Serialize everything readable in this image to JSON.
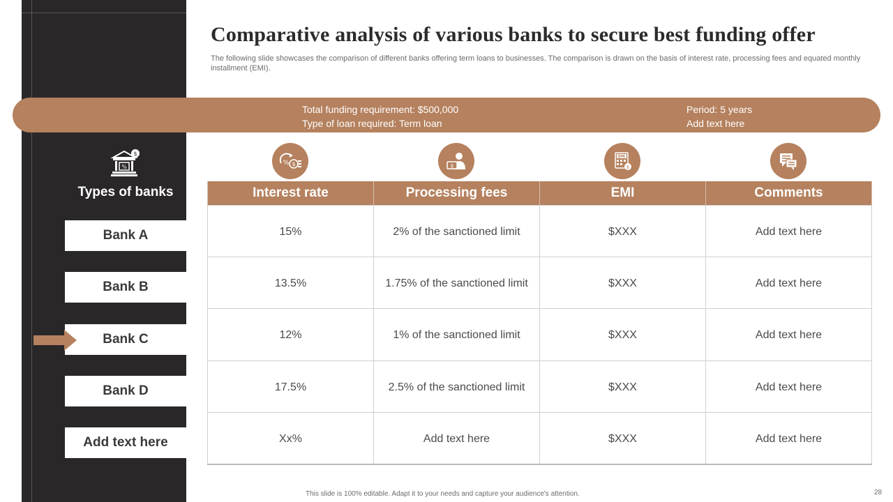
{
  "title": "Comparative analysis of various banks to secure best funding offer",
  "subtitle": "The following slide showcases the comparison of different banks offering term loans to businesses. The comparison is drawn on the basis of interest rate, processing fees and equated monthly installment (EMI).",
  "banner": {
    "left_line1": "Total funding requirement: $500,000",
    "left_line2": "Type of loan required: Term loan",
    "right_line1": "Period: 5 years",
    "right_line2": "Add text here"
  },
  "sidebar": {
    "title": "Types of banks",
    "banks": [
      "Bank A",
      "Bank B",
      "Bank C",
      "Bank D",
      "Add text here"
    ],
    "selected": "Bank C"
  },
  "table": {
    "headers": [
      "Interest rate",
      "Processing fees",
      "EMI",
      "Comments"
    ],
    "header_icons": [
      "interest-rate-icon",
      "processing-fees-icon",
      "emi-calculator-icon",
      "comments-icon"
    ],
    "rows": [
      [
        "15%",
        "2% of the sanctioned limit",
        "$XXX",
        "Add text here"
      ],
      [
        "13.5%",
        "1.75% of the sanctioned limit",
        "$XXX",
        "Add text here"
      ],
      [
        "12%",
        "1% of the sanctioned limit",
        "$XXX",
        "Add text here"
      ],
      [
        "17.5%",
        "2.5% of the sanctioned limit",
        "$XXX",
        "Add text here"
      ],
      [
        "Xx%",
        "Add text here",
        "$XXX",
        "Add text here"
      ]
    ]
  },
  "footer": {
    "note": "This slide is 100% editable. Adapt it to your needs and capture your audience's attention.",
    "page_number": "28"
  },
  "colors": {
    "accent": "#b5815e",
    "sidebar": "#2a2729",
    "text": "#3a3a3a"
  }
}
